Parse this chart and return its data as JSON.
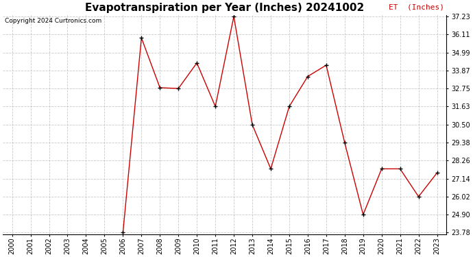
{
  "title": "Evapotranspiration per Year (Inches) 20241002",
  "copyright": "Copyright 2024 Curtronics.com",
  "legend_label": "ET  (Inches)",
  "years": [
    2000,
    2001,
    2002,
    2003,
    2004,
    2005,
    2006,
    2007,
    2008,
    2009,
    2010,
    2011,
    2012,
    2013,
    2014,
    2015,
    2016,
    2017,
    2018,
    2019,
    2020,
    2021,
    2022,
    2023
  ],
  "values": [
    null,
    null,
    null,
    null,
    null,
    null,
    23.78,
    35.9,
    32.8,
    32.75,
    34.34,
    31.63,
    37.23,
    30.5,
    27.75,
    31.63,
    33.5,
    34.2,
    29.38,
    24.9,
    27.75,
    27.75,
    26.02,
    27.5
  ],
  "ylim_min": 23.78,
  "ylim_max": 37.23,
  "yticks": [
    23.78,
    24.9,
    26.02,
    27.14,
    28.26,
    29.38,
    30.5,
    31.63,
    32.75,
    33.87,
    34.99,
    36.11,
    37.23
  ],
  "line_color": "#cc0000",
  "marker_color": "#000000",
  "background_color": "#ffffff",
  "grid_color": "#bbbbbb",
  "title_fontsize": 11,
  "copyright_fontsize": 6.5,
  "legend_color": "#cc0000",
  "legend_fontsize": 8,
  "tick_label_fontsize": 7,
  "ytick_label_fontsize": 7
}
